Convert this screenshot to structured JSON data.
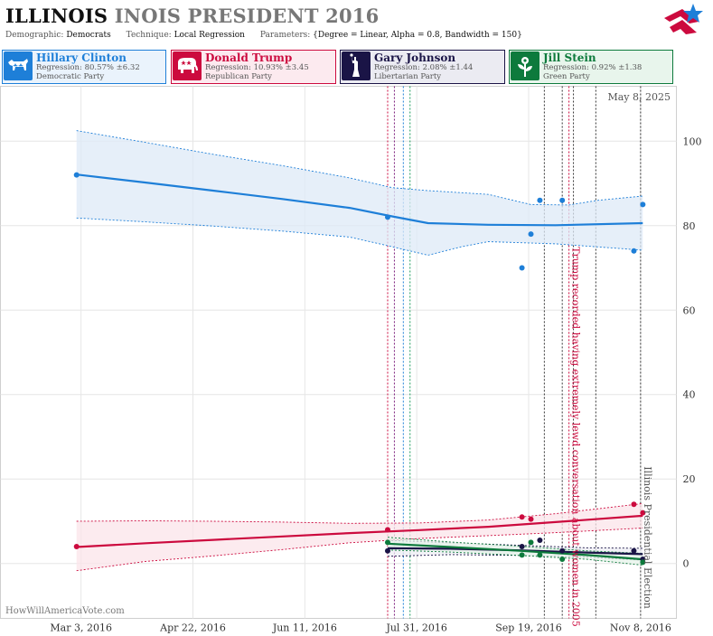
{
  "header": {
    "title_state": "ILLINOIS",
    "title_rest": "INOIS PRESIDENT 2016",
    "params": [
      {
        "label": "Demographic:",
        "value": "Democrats"
      },
      {
        "label": "Technique:",
        "value": "Local Regression"
      },
      {
        "label": "Parameters:",
        "value": "{Degree = Linear, Alpha = 0.8, Bandwidth = 150}"
      }
    ]
  },
  "candidates": [
    {
      "name": "Hillary Clinton",
      "regression": "Regression: 80.57% ±6.32",
      "party": "Democratic Party",
      "color": "#1e7fd8",
      "bg": "#eaf3fc",
      "icon": "donkey-icon"
    },
    {
      "name": "Donald Trump",
      "regression": "Regression: 10.93% ±3.45",
      "party": "Republican Party",
      "color": "#cc0a3e",
      "bg": "#fceaef",
      "icon": "elephant-icon"
    },
    {
      "name": "Gary Johnson",
      "regression": "Regression: 2.08% ±1.44",
      "party": "Libertarian Party",
      "color": "#1a1446",
      "bg": "#ebebf2",
      "icon": "statue-of-liberty-icon"
    },
    {
      "name": "Jill Stein",
      "regression": "Regression: 0.92% ±1.38",
      "party": "Green Party",
      "color": "#0d7a3c",
      "bg": "#e8f5ec",
      "icon": "flower-icon"
    }
  ],
  "chart_data": {
    "type": "line",
    "date_label": "May 8, 2025",
    "watermark": "HowWillAmericaVote.com",
    "x_ticks": [
      "Mar 3, 2016",
      "Apr 22, 2016",
      "Jun 11, 2016",
      "Jul 31, 2016",
      "Sep 19, 2016",
      "Nov 8, 2016"
    ],
    "x_domain": [
      "2016-01-27",
      "2016-11-24"
    ],
    "y_ticks": [
      0,
      20,
      40,
      60,
      80,
      100
    ],
    "ylim": [
      -13,
      113
    ],
    "grid": true,
    "annotations": [
      {
        "date": "2016-10-07",
        "text": "Trump recorded having extremely lewd conversation about women in 2005",
        "color": "#cc0a3e"
      },
      {
        "date": "2016-11-08",
        "text": "Illinois Presidential Election",
        "color": "#555555"
      }
    ],
    "event_lines": [
      {
        "date": "2016-07-18",
        "color": "#cc0a3e"
      },
      {
        "date": "2016-07-21",
        "color": "#7a1a7a"
      },
      {
        "date": "2016-07-25",
        "color": "#1e7fd8"
      },
      {
        "date": "2016-07-28",
        "color": "#1a9a5a"
      },
      {
        "date": "2016-09-26",
        "color": "#333333"
      },
      {
        "date": "2016-10-04",
        "color": "#333333"
      },
      {
        "date": "2016-10-07",
        "color": "#cc0a3e"
      },
      {
        "date": "2016-10-09",
        "color": "#333333"
      },
      {
        "date": "2016-10-19",
        "color": "#333333"
      },
      {
        "date": "2016-11-08",
        "color": "#333333"
      }
    ],
    "series": [
      {
        "name": "Hillary Clinton",
        "color": "#1e7fd8",
        "band": "#dde9f7",
        "line": [
          [
            "2016-03-01",
            92.1
          ],
          [
            "2016-04-01",
            90.2
          ],
          [
            "2016-05-01",
            88.3
          ],
          [
            "2016-06-01",
            86.3
          ],
          [
            "2016-07-01",
            84.2
          ],
          [
            "2016-07-20",
            82.2
          ],
          [
            "2016-08-05",
            80.6
          ],
          [
            "2016-09-01",
            80.2
          ],
          [
            "2016-10-01",
            80.1
          ],
          [
            "2016-11-09",
            80.6
          ]
        ],
        "upper": [
          [
            "2016-03-01",
            102.5
          ],
          [
            "2016-04-01",
            99.7
          ],
          [
            "2016-05-01",
            96.9
          ],
          [
            "2016-06-01",
            94.2
          ],
          [
            "2016-07-01",
            91.3
          ],
          [
            "2016-07-20",
            89.0
          ],
          [
            "2016-08-05",
            88.3
          ],
          [
            "2016-09-01",
            87.4
          ],
          [
            "2016-09-20",
            85.0
          ],
          [
            "2016-10-07",
            84.9
          ],
          [
            "2016-10-20",
            86.0
          ],
          [
            "2016-11-09",
            87.0
          ]
        ],
        "lower": [
          [
            "2016-03-01",
            81.8
          ],
          [
            "2016-04-01",
            80.9
          ],
          [
            "2016-05-01",
            79.9
          ],
          [
            "2016-06-01",
            78.7
          ],
          [
            "2016-07-01",
            77.3
          ],
          [
            "2016-07-20",
            75.0
          ],
          [
            "2016-08-05",
            73.0
          ],
          [
            "2016-08-20",
            75.0
          ],
          [
            "2016-09-01",
            76.2
          ],
          [
            "2016-10-01",
            75.7
          ],
          [
            "2016-11-09",
            74.2
          ]
        ],
        "points": [
          [
            "2016-03-01",
            92
          ],
          [
            "2016-07-18",
            82
          ],
          [
            "2016-09-16",
            70
          ],
          [
            "2016-09-20",
            78
          ],
          [
            "2016-09-24",
            86
          ],
          [
            "2016-10-04",
            86
          ],
          [
            "2016-11-05",
            74
          ],
          [
            "2016-11-09",
            85
          ]
        ]
      },
      {
        "name": "Donald Trump",
        "color": "#cc0a3e",
        "band": "#fbe4ea",
        "line": [
          [
            "2016-03-01",
            3.9
          ],
          [
            "2016-04-01",
            4.8
          ],
          [
            "2016-05-01",
            5.6
          ],
          [
            "2016-06-01",
            6.4
          ],
          [
            "2016-07-01",
            7.2
          ],
          [
            "2016-08-01",
            7.9
          ],
          [
            "2016-09-01",
            8.7
          ],
          [
            "2016-10-01",
            9.8
          ],
          [
            "2016-11-09",
            11.3
          ]
        ],
        "upper": [
          [
            "2016-03-01",
            10.0
          ],
          [
            "2016-04-01",
            10.1
          ],
          [
            "2016-05-01",
            10.0
          ],
          [
            "2016-06-01",
            9.8
          ],
          [
            "2016-07-01",
            9.5
          ],
          [
            "2016-08-01",
            9.6
          ],
          [
            "2016-09-01",
            10.3
          ],
          [
            "2016-10-01",
            11.8
          ],
          [
            "2016-11-09",
            14.2
          ]
        ],
        "lower": [
          [
            "2016-03-01",
            -1.7
          ],
          [
            "2016-04-01",
            0.5
          ],
          [
            "2016-05-01",
            1.8
          ],
          [
            "2016-06-01",
            3.3
          ],
          [
            "2016-07-01",
            4.9
          ],
          [
            "2016-08-01",
            5.9
          ],
          [
            "2016-09-01",
            6.6
          ],
          [
            "2016-10-01",
            7.3
          ],
          [
            "2016-11-09",
            8.4
          ]
        ],
        "points": [
          [
            "2016-03-01",
            4
          ],
          [
            "2016-07-18",
            8
          ],
          [
            "2016-09-16",
            11
          ],
          [
            "2016-09-20",
            10.5
          ],
          [
            "2016-11-05",
            14
          ],
          [
            "2016-11-09",
            12
          ]
        ]
      },
      {
        "name": "Gary Johnson",
        "color": "#1a1446",
        "band": "#eeeef4",
        "line": [
          [
            "2016-07-18",
            3.6
          ],
          [
            "2016-08-15",
            3.5
          ],
          [
            "2016-09-15",
            3.1
          ],
          [
            "2016-10-15",
            2.6
          ],
          [
            "2016-11-09",
            2.2
          ]
        ],
        "upper": [
          [
            "2016-07-18",
            5.5
          ],
          [
            "2016-08-15",
            4.9
          ],
          [
            "2016-09-15",
            4.3
          ],
          [
            "2016-10-15",
            3.7
          ],
          [
            "2016-11-09",
            3.6
          ]
        ],
        "lower": [
          [
            "2016-07-18",
            1.7
          ],
          [
            "2016-08-15",
            2.1
          ],
          [
            "2016-09-15",
            1.9
          ],
          [
            "2016-10-15",
            1.5
          ],
          [
            "2016-11-09",
            0.8
          ]
        ],
        "points": [
          [
            "2016-07-18",
            3
          ],
          [
            "2016-09-16",
            4
          ],
          [
            "2016-09-24",
            5.5
          ],
          [
            "2016-10-04",
            3
          ],
          [
            "2016-11-05",
            3
          ],
          [
            "2016-11-09",
            1
          ]
        ]
      },
      {
        "name": "Jill Stein",
        "color": "#0d7a3c",
        "band": "#e6f3ea",
        "line": [
          [
            "2016-07-18",
            4.7
          ],
          [
            "2016-08-15",
            3.9
          ],
          [
            "2016-09-15",
            3.0
          ],
          [
            "2016-10-15",
            2.0
          ],
          [
            "2016-11-09",
            1.0
          ]
        ],
        "upper": [
          [
            "2016-07-18",
            6.2
          ],
          [
            "2016-08-15",
            5.1
          ],
          [
            "2016-09-15",
            4.1
          ],
          [
            "2016-10-15",
            3.0
          ],
          [
            "2016-11-09",
            2.4
          ]
        ],
        "lower": [
          [
            "2016-07-18",
            3.2
          ],
          [
            "2016-08-15",
            2.7
          ],
          [
            "2016-09-15",
            1.9
          ],
          [
            "2016-10-15",
            1.0
          ],
          [
            "2016-11-09",
            -0.4
          ]
        ],
        "points": [
          [
            "2016-07-18",
            5
          ],
          [
            "2016-09-16",
            2
          ],
          [
            "2016-09-20",
            5
          ],
          [
            "2016-09-24",
            2
          ],
          [
            "2016-10-04",
            1
          ],
          [
            "2016-11-09",
            0.3
          ]
        ]
      }
    ]
  }
}
